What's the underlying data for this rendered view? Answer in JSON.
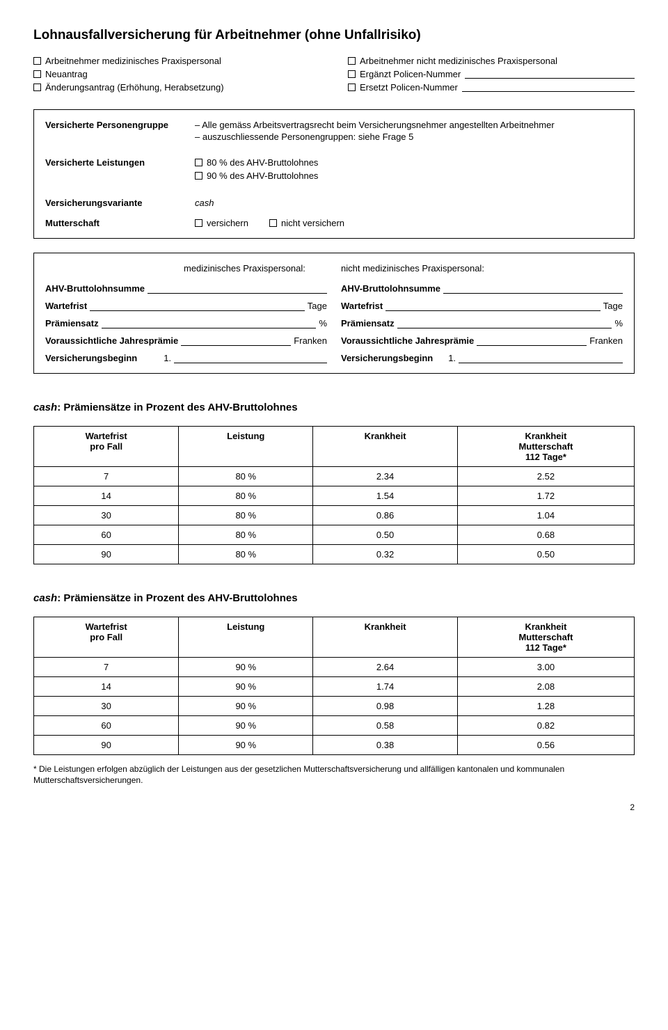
{
  "title": "Lohnausfallversicherung für Arbeitnehmer (ohne Unfallrisiko)",
  "topLeft": [
    "Arbeitnehmer medizinisches Praxispersonal",
    "Neuantrag",
    "Änderungsantrag (Erhöhung, Herabsetzung)"
  ],
  "topRight": [
    {
      "text": "Arbeitnehmer nicht medizinisches Praxispersonal",
      "line": false
    },
    {
      "text": "Ergänzt Policen-Nummer",
      "line": true
    },
    {
      "text": "Ersetzt Policen-Nummer",
      "line": true
    }
  ],
  "box1": {
    "r1": {
      "label": "Versicherte Personengruppe",
      "items": [
        "– Alle gemäss Arbeitsvertragsrecht beim Versicherungsnehmer angestellten Arbeitnehmer",
        "– auszuschliessende Personengruppen: siehe Frage 5"
      ]
    },
    "r2": {
      "label": "Versicherte Leistungen",
      "opts": [
        "80 % des AHV-Bruttolohnes",
        "90 % des AHV-Bruttolohnes"
      ]
    },
    "r3": {
      "label": "Versicherungsvariante",
      "value": "cash"
    },
    "r4": {
      "label": "Mutterschaft",
      "opts": [
        "versichern",
        "nicht versichern"
      ]
    }
  },
  "box2": {
    "headerLeft": "medizinisches Praxispersonal:",
    "headerRight": "nicht medizinisches Praxispersonal:",
    "fields": {
      "ahv": "AHV-Bruttolohnsumme",
      "wartefrist": "Wartefrist",
      "wartefristSuffix": "Tage",
      "praemiensatz": "Prämiensatz",
      "praemiensatzSuffix": "%",
      "jahrespr": "Voraussichtliche Jahresprämie",
      "jahresprSuffix": "Franken",
      "beginn": "Versicherungsbeginn",
      "beginnPrefix": "1."
    }
  },
  "tablesTitle": "cash: Prämiensätze in Prozent des AHV-Bruttolohnes",
  "tableHeaders": {
    "c1a": "Wartefrist",
    "c1b": "pro Fall",
    "c2": "Leistung",
    "c3": "Krankheit",
    "c4a": "Krankheit",
    "c4b": "Mutterschaft",
    "c4c": "112 Tage*"
  },
  "table1": [
    [
      "7",
      "80 %",
      "2.34",
      "2.52"
    ],
    [
      "14",
      "80 %",
      "1.54",
      "1.72"
    ],
    [
      "30",
      "80 %",
      "0.86",
      "1.04"
    ],
    [
      "60",
      "80 %",
      "0.50",
      "0.68"
    ],
    [
      "90",
      "80 %",
      "0.32",
      "0.50"
    ]
  ],
  "table2": [
    [
      "7",
      "90 %",
      "2.64",
      "3.00"
    ],
    [
      "14",
      "90 %",
      "1.74",
      "2.08"
    ],
    [
      "30",
      "90 %",
      "0.98",
      "1.28"
    ],
    [
      "60",
      "90 %",
      "0.58",
      "0.82"
    ],
    [
      "90",
      "90 %",
      "0.38",
      "0.56"
    ]
  ],
  "footnote": "* Die Leistungen erfolgen abzüglich der Leistungen aus der gesetzlichen Mutterschaftsversicherung und allfälligen kantonalen und kommunalen Mutterschaftsversicherungen.",
  "pageNum": "2"
}
